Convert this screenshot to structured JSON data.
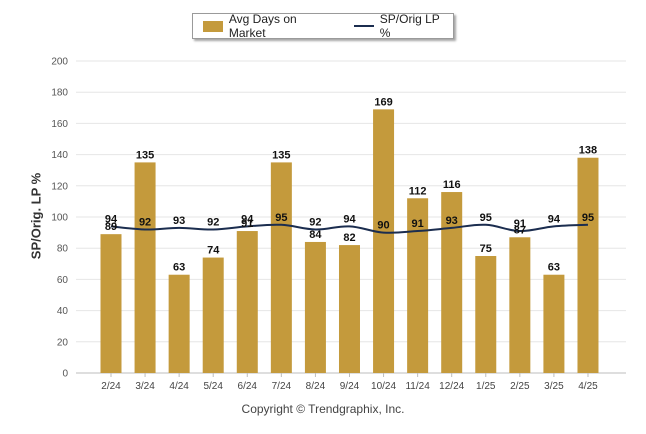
{
  "legend": {
    "bar_label": "Avg Days on Market",
    "line_label": "SP/Orig LP %"
  },
  "axis": {
    "ylabel": "SP/Orig. LP %"
  },
  "footer": {
    "copyright": "Copyright © Trendgraphix, Inc."
  },
  "colors": {
    "bar": "#c49a3c",
    "line": "#1b2d4f",
    "grid": "#e6e6e6"
  },
  "chart_data": {
    "type": "bar",
    "categories": [
      "2/24",
      "3/24",
      "4/24",
      "5/24",
      "6/24",
      "7/24",
      "8/24",
      "9/24",
      "10/24",
      "11/24",
      "12/24",
      "1/25",
      "2/25",
      "3/25",
      "4/25"
    ],
    "series": [
      {
        "name": "Avg Days on Market",
        "type": "bar",
        "values": [
          89,
          135,
          63,
          74,
          91,
          135,
          84,
          82,
          169,
          112,
          116,
          75,
          87,
          63,
          138
        ]
      },
      {
        "name": "SP/Orig LP %",
        "type": "line",
        "values": [
          94,
          92,
          93,
          92,
          94,
          95,
          92,
          94,
          90,
          91,
          93,
          95,
          91,
          94,
          95
        ]
      }
    ],
    "ylabel": "SP/Orig. LP %",
    "ylim": [
      0,
      200
    ],
    "yticks": [
      0,
      20,
      40,
      60,
      80,
      100,
      120,
      140,
      160,
      180,
      200
    ],
    "grid": true,
    "legend": "top-center"
  }
}
